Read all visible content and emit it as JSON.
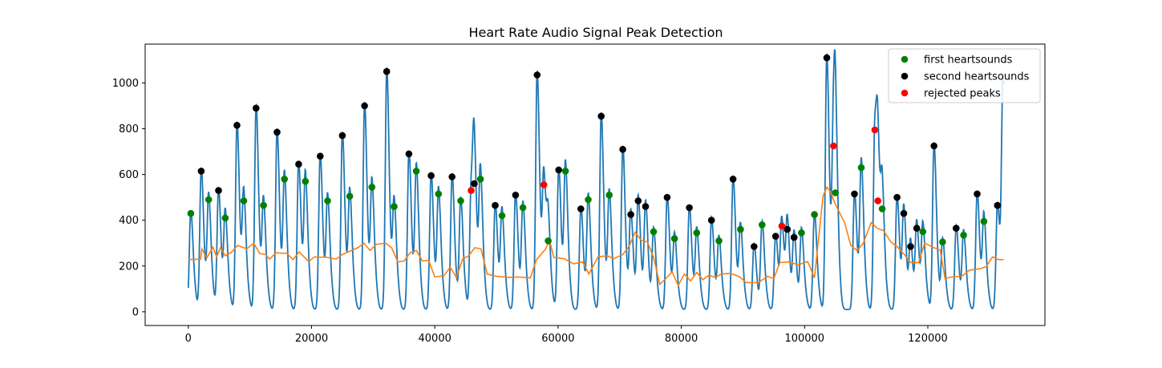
{
  "chart_data": {
    "type": "line",
    "title": "Heart Rate Audio Signal Peak Detection",
    "xlabel": "",
    "ylabel": "",
    "xlim": [
      -7000,
      139000
    ],
    "ylim": [
      -60,
      1170
    ],
    "xticks": [
      0,
      20000,
      40000,
      60000,
      80000,
      100000,
      120000
    ],
    "yticks": [
      0,
      200,
      400,
      600,
      800,
      1000
    ],
    "xtick_labels": [
      "0",
      "20000",
      "40000",
      "60000",
      "80000",
      "100000",
      "120000"
    ],
    "ytick_labels": [
      "0",
      "200",
      "400",
      "600",
      "800",
      "1000"
    ],
    "grid": false,
    "legend_position": "top-right",
    "colors": {
      "signal": "#1f77b4",
      "moving_average": "#ff7f0e",
      "first": "#008000",
      "second": "#000000",
      "rejected": "#ff0000"
    },
    "signal_peaks": [
      [
        400,
        430
      ],
      [
        2100,
        615
      ],
      [
        3300,
        490
      ],
      [
        4900,
        530
      ],
      [
        6000,
        410
      ],
      [
        7900,
        815
      ],
      [
        9000,
        485
      ],
      [
        11000,
        890
      ],
      [
        12200,
        465
      ],
      [
        14400,
        785
      ],
      [
        15600,
        580
      ],
      [
        17900,
        645
      ],
      [
        19000,
        570
      ],
      [
        21400,
        680
      ],
      [
        22600,
        485
      ],
      [
        25000,
        770
      ],
      [
        26200,
        505
      ],
      [
        28600,
        900
      ],
      [
        29800,
        545
      ],
      [
        32200,
        1050
      ],
      [
        33400,
        460
      ],
      [
        35800,
        690
      ],
      [
        37000,
        615
      ],
      [
        39400,
        595
      ],
      [
        40600,
        515
      ],
      [
        42800,
        590
      ],
      [
        44200,
        485
      ],
      [
        45900,
        530
      ],
      [
        46400,
        560
      ],
      [
        47400,
        580
      ],
      [
        49800,
        465
      ],
      [
        50900,
        420
      ],
      [
        53100,
        510
      ],
      [
        54300,
        455
      ],
      [
        56600,
        1035
      ],
      [
        57700,
        555
      ],
      [
        58400,
        310
      ],
      [
        60100,
        620
      ],
      [
        61200,
        615
      ],
      [
        63700,
        450
      ],
      [
        64900,
        490
      ],
      [
        67000,
        855
      ],
      [
        68300,
        510
      ],
      [
        70500,
        710
      ],
      [
        71800,
        425
      ],
      [
        73000,
        485
      ],
      [
        74200,
        460
      ],
      [
        75500,
        350
      ],
      [
        77700,
        500
      ],
      [
        78900,
        320
      ],
      [
        81300,
        455
      ],
      [
        82500,
        345
      ],
      [
        84900,
        400
      ],
      [
        86100,
        310
      ],
      [
        88400,
        580
      ],
      [
        89600,
        360
      ],
      [
        91800,
        285
      ],
      [
        93100,
        380
      ],
      [
        95300,
        330
      ],
      [
        96300,
        375
      ],
      [
        97200,
        360
      ],
      [
        98300,
        325
      ],
      [
        99500,
        345
      ],
      [
        101600,
        425
      ],
      [
        103600,
        1110
      ],
      [
        104700,
        725
      ],
      [
        105000,
        520
      ],
      [
        108100,
        515
      ],
      [
        109200,
        630
      ],
      [
        111400,
        795
      ],
      [
        111900,
        485
      ],
      [
        112600,
        450
      ],
      [
        115000,
        500
      ],
      [
        116100,
        430
      ],
      [
        117200,
        285
      ],
      [
        118200,
        365
      ],
      [
        119200,
        350
      ],
      [
        121000,
        725
      ],
      [
        122400,
        305
      ],
      [
        124600,
        365
      ],
      [
        125800,
        335
      ],
      [
        128000,
        515
      ],
      [
        129100,
        395
      ],
      [
        131300,
        465
      ],
      [
        132200,
        960
      ]
    ],
    "moving_average": [
      [
        0,
        228
      ],
      [
        2000,
        230
      ],
      [
        2200,
        275
      ],
      [
        3000,
        235
      ],
      [
        4000,
        282
      ],
      [
        4600,
        240
      ],
      [
        5200,
        280
      ],
      [
        6000,
        245
      ],
      [
        7000,
        260
      ],
      [
        8000,
        290
      ],
      [
        9500,
        275
      ],
      [
        10600,
        300
      ],
      [
        11600,
        255
      ],
      [
        12500,
        250
      ],
      [
        13200,
        230
      ],
      [
        14200,
        258
      ],
      [
        16000,
        255
      ],
      [
        17000,
        228
      ],
      [
        18000,
        262
      ],
      [
        19500,
        220
      ],
      [
        20500,
        240
      ],
      [
        22500,
        238
      ],
      [
        24000,
        230
      ],
      [
        25000,
        250
      ],
      [
        26500,
        268
      ],
      [
        27500,
        280
      ],
      [
        28500,
        300
      ],
      [
        29500,
        268
      ],
      [
        30500,
        295
      ],
      [
        32000,
        300
      ],
      [
        33000,
        280
      ],
      [
        34000,
        218
      ],
      [
        35000,
        222
      ],
      [
        36000,
        258
      ],
      [
        37000,
        268
      ],
      [
        38000,
        222
      ],
      [
        39000,
        225
      ],
      [
        40000,
        152
      ],
      [
        41500,
        158
      ],
      [
        42500,
        195
      ],
      [
        43500,
        150
      ],
      [
        44500,
        230
      ],
      [
        45500,
        245
      ],
      [
        46500,
        280
      ],
      [
        47500,
        275
      ],
      [
        48500,
        165
      ],
      [
        50000,
        155
      ],
      [
        52000,
        150
      ],
      [
        53500,
        152
      ],
      [
        55500,
        148
      ],
      [
        56500,
        228
      ],
      [
        58000,
        275
      ],
      [
        58600,
        315
      ],
      [
        59300,
        238
      ],
      [
        61000,
        232
      ],
      [
        62500,
        210
      ],
      [
        64000,
        218
      ],
      [
        65000,
        165
      ],
      [
        66500,
        240
      ],
      [
        68000,
        245
      ],
      [
        69000,
        232
      ],
      [
        70500,
        250
      ],
      [
        71500,
        285
      ],
      [
        72500,
        348
      ],
      [
        73500,
        312
      ],
      [
        74500,
        305
      ],
      [
        75500,
        238
      ],
      [
        76500,
        120
      ],
      [
        77500,
        145
      ],
      [
        78500,
        175
      ],
      [
        79500,
        115
      ],
      [
        80500,
        165
      ],
      [
        81500,
        135
      ],
      [
        82500,
        172
      ],
      [
        83500,
        140
      ],
      [
        84500,
        160
      ],
      [
        85500,
        150
      ],
      [
        86500,
        165
      ],
      [
        88000,
        168
      ],
      [
        89500,
        152
      ],
      [
        90500,
        128
      ],
      [
        92500,
        128
      ],
      [
        94000,
        155
      ],
      [
        95000,
        145
      ],
      [
        96000,
        215
      ],
      [
        97500,
        218
      ],
      [
        99000,
        205
      ],
      [
        100500,
        220
      ],
      [
        101600,
        148
      ],
      [
        103000,
        505
      ],
      [
        103600,
        545
      ],
      [
        104200,
        525
      ],
      [
        105000,
        470
      ],
      [
        106500,
        390
      ],
      [
        107500,
        290
      ],
      [
        108500,
        268
      ],
      [
        109500,
        298
      ],
      [
        110800,
        390
      ],
      [
        111800,
        365
      ],
      [
        112800,
        355
      ],
      [
        114000,
        305
      ],
      [
        115000,
        285
      ],
      [
        116200,
        250
      ],
      [
        117200,
        215
      ],
      [
        118500,
        215
      ],
      [
        119500,
        300
      ],
      [
        121000,
        280
      ],
      [
        122000,
        270
      ],
      [
        122800,
        145
      ],
      [
        123800,
        152
      ],
      [
        125500,
        155
      ],
      [
        126800,
        182
      ],
      [
        128500,
        188
      ],
      [
        129500,
        198
      ],
      [
        130500,
        240
      ],
      [
        131500,
        228
      ],
      [
        132300,
        228
      ]
    ],
    "series": [
      {
        "name": "first heartsounds",
        "color": "#008000",
        "points": [
          [
            400,
            430
          ],
          [
            3300,
            490
          ],
          [
            6000,
            410
          ],
          [
            9000,
            485
          ],
          [
            12200,
            465
          ],
          [
            15600,
            580
          ],
          [
            19000,
            570
          ],
          [
            22600,
            485
          ],
          [
            26200,
            505
          ],
          [
            29800,
            545
          ],
          [
            33400,
            460
          ],
          [
            37000,
            615
          ],
          [
            40600,
            515
          ],
          [
            44200,
            485
          ],
          [
            47400,
            580
          ],
          [
            50900,
            420
          ],
          [
            54300,
            455
          ],
          [
            58400,
            310
          ],
          [
            61200,
            615
          ],
          [
            64900,
            490
          ],
          [
            68300,
            510
          ],
          [
            75500,
            350
          ],
          [
            78900,
            320
          ],
          [
            82500,
            345
          ],
          [
            86100,
            310
          ],
          [
            89600,
            360
          ],
          [
            93100,
            380
          ],
          [
            99500,
            345
          ],
          [
            101600,
            425
          ],
          [
            105000,
            520
          ],
          [
            109200,
            630
          ],
          [
            112600,
            450
          ],
          [
            119200,
            350
          ],
          [
            122400,
            305
          ],
          [
            125800,
            335
          ],
          [
            129100,
            395
          ]
        ]
      },
      {
        "name": "second heartsounds",
        "color": "#000000",
        "points": [
          [
            2100,
            615
          ],
          [
            4900,
            530
          ],
          [
            7900,
            815
          ],
          [
            11000,
            890
          ],
          [
            14400,
            785
          ],
          [
            17900,
            645
          ],
          [
            21400,
            680
          ],
          [
            25000,
            770
          ],
          [
            28600,
            900
          ],
          [
            32200,
            1050
          ],
          [
            35800,
            690
          ],
          [
            39400,
            595
          ],
          [
            42800,
            590
          ],
          [
            46400,
            560
          ],
          [
            49800,
            465
          ],
          [
            53100,
            510
          ],
          [
            56600,
            1035
          ],
          [
            60100,
            620
          ],
          [
            63700,
            450
          ],
          [
            67000,
            855
          ],
          [
            70500,
            710
          ],
          [
            71800,
            425
          ],
          [
            73000,
            485
          ],
          [
            74200,
            460
          ],
          [
            77700,
            500
          ],
          [
            81300,
            455
          ],
          [
            84900,
            400
          ],
          [
            88400,
            580
          ],
          [
            91800,
            285
          ],
          [
            95300,
            330
          ],
          [
            97200,
            360
          ],
          [
            98300,
            325
          ],
          [
            103600,
            1110
          ],
          [
            108100,
            515
          ],
          [
            115000,
            500
          ],
          [
            116100,
            430
          ],
          [
            117200,
            285
          ],
          [
            118200,
            365
          ],
          [
            121000,
            725
          ],
          [
            124600,
            365
          ],
          [
            128000,
            515
          ],
          [
            131300,
            465
          ]
        ]
      },
      {
        "name": "rejected peaks",
        "color": "#ff0000",
        "points": [
          [
            45900,
            530
          ],
          [
            57700,
            555
          ],
          [
            96300,
            375
          ],
          [
            104700,
            725
          ],
          [
            111400,
            795
          ],
          [
            111900,
            485
          ]
        ]
      }
    ]
  }
}
